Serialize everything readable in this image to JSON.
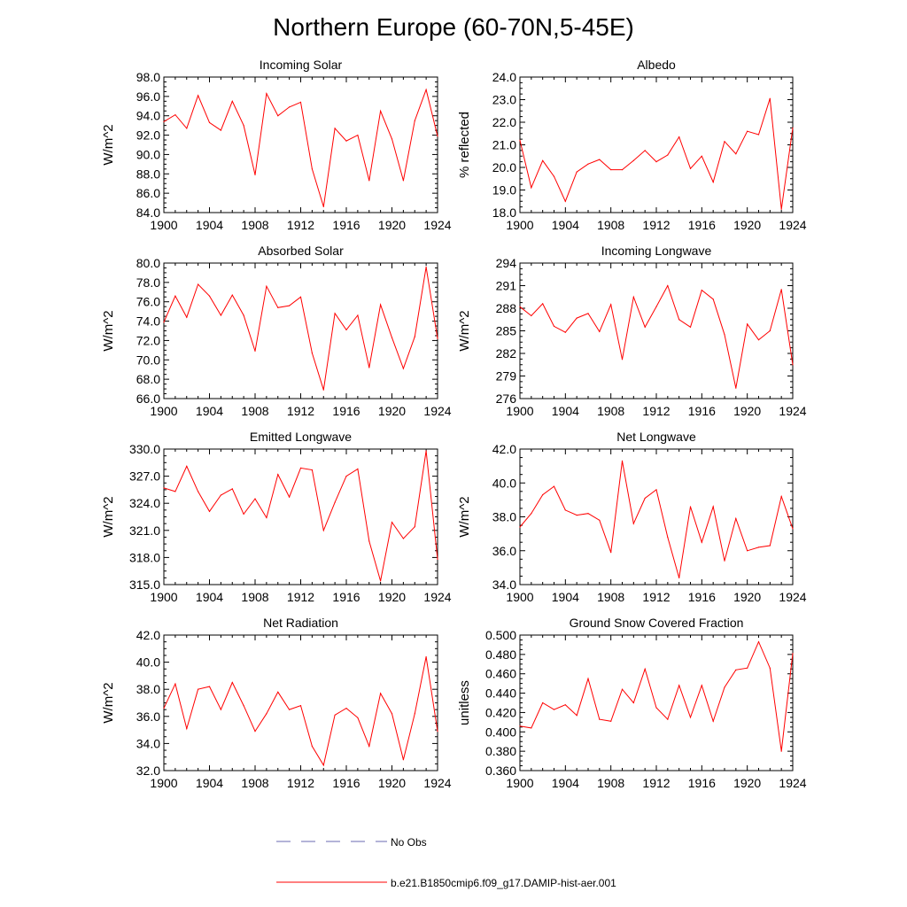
{
  "title": "Northern Europe (60-70N,5-45E)",
  "colors": {
    "series": "#ff0000",
    "no_obs": "#6a6ab0",
    "axis": "#000000"
  },
  "legend": {
    "no_obs_label": "No Obs",
    "series_label": "b.e21.B1850cmip6.f09_g17.DAMIP-hist-aer.001"
  },
  "chart_data": [
    {
      "type": "line",
      "title": "Incoming Solar",
      "ylabel": "W/m^2",
      "xlim": [
        1900,
        1924
      ],
      "ylim": [
        84,
        98
      ],
      "yticks": [
        84,
        86,
        88,
        90,
        92,
        94,
        96,
        98
      ],
      "ytick_labels": [
        "84.0",
        "86.0",
        "88.0",
        "90.0",
        "92.0",
        "94.0",
        "96.0",
        "98.0"
      ],
      "xticks": [
        1900,
        1904,
        1908,
        1912,
        1916,
        1920,
        1924
      ],
      "series": [
        {
          "x": [
            1900,
            1901,
            1902,
            1903,
            1904,
            1905,
            1906,
            1907,
            1908,
            1909,
            1910,
            1911,
            1912,
            1913,
            1914,
            1915,
            1916,
            1917,
            1918,
            1919,
            1920,
            1921,
            1922,
            1923,
            1924
          ],
          "values": [
            93.4,
            94.1,
            92.7,
            96.1,
            93.3,
            92.5,
            95.5,
            93.0,
            87.9,
            96.3,
            94.0,
            94.9,
            95.4,
            88.5,
            84.6,
            92.7,
            91.4,
            92.0,
            87.3,
            94.5,
            91.6,
            87.3,
            93.5,
            96.7,
            91.9
          ]
        }
      ]
    },
    {
      "type": "line",
      "title": "Albedo",
      "ylabel": "% reflected",
      "xlim": [
        1900,
        1924
      ],
      "ylim": [
        18,
        24
      ],
      "yticks": [
        18,
        19,
        20,
        21,
        22,
        23,
        24
      ],
      "ytick_labels": [
        "18.0",
        "19.0",
        "20.0",
        "21.0",
        "22.0",
        "23.0",
        "24.0"
      ],
      "xticks": [
        1900,
        1904,
        1908,
        1912,
        1916,
        1920,
        1924
      ],
      "series": [
        {
          "x": [
            1900,
            1901,
            1902,
            1903,
            1904,
            1905,
            1906,
            1907,
            1908,
            1909,
            1910,
            1911,
            1912,
            1913,
            1914,
            1915,
            1916,
            1917,
            1918,
            1919,
            1920,
            1921,
            1922,
            1923,
            1924
          ],
          "values": [
            21.2,
            19.1,
            20.3,
            19.6,
            18.5,
            19.8,
            20.15,
            20.35,
            19.9,
            19.9,
            20.3,
            20.75,
            20.25,
            20.55,
            21.35,
            19.95,
            20.5,
            19.35,
            21.15,
            20.6,
            21.6,
            21.45,
            23.05,
            18.15,
            21.75
          ]
        }
      ]
    },
    {
      "type": "line",
      "title": "Absorbed Solar",
      "ylabel": "W/m^2",
      "xlim": [
        1900,
        1924
      ],
      "ylim": [
        66,
        80
      ],
      "yticks": [
        66,
        68,
        70,
        72,
        74,
        76,
        78,
        80
      ],
      "ytick_labels": [
        "66.0",
        "68.0",
        "70.0",
        "72.0",
        "74.0",
        "76.0",
        "78.0",
        "80.0"
      ],
      "xticks": [
        1900,
        1904,
        1908,
        1912,
        1916,
        1920,
        1924
      ],
      "series": [
        {
          "x": [
            1900,
            1901,
            1902,
            1903,
            1904,
            1905,
            1906,
            1907,
            1908,
            1909,
            1910,
            1911,
            1912,
            1913,
            1914,
            1915,
            1916,
            1917,
            1918,
            1919,
            1920,
            1921,
            1922,
            1923,
            1924
          ],
          "values": [
            73.9,
            76.6,
            74.4,
            77.8,
            76.6,
            74.6,
            76.7,
            74.6,
            70.9,
            77.6,
            75.4,
            75.6,
            76.5,
            70.7,
            66.9,
            74.8,
            73.1,
            74.6,
            69.2,
            75.7,
            72.3,
            69.1,
            72.4,
            79.6,
            72.2
          ]
        }
      ]
    },
    {
      "type": "line",
      "title": "Incoming Longwave",
      "ylabel": "W/m^2",
      "xlim": [
        1900,
        1924
      ],
      "ylim": [
        276,
        294
      ],
      "yticks": [
        276,
        279,
        282,
        285,
        288,
        291,
        294
      ],
      "ytick_labels": [
        "276",
        "279",
        "282",
        "285",
        "288",
        "291",
        "294"
      ],
      "xticks": [
        1900,
        1904,
        1908,
        1912,
        1916,
        1920,
        1924
      ],
      "series": [
        {
          "x": [
            1900,
            1901,
            1902,
            1903,
            1904,
            1905,
            1906,
            1907,
            1908,
            1909,
            1910,
            1911,
            1912,
            1913,
            1914,
            1915,
            1916,
            1917,
            1918,
            1919,
            1920,
            1921,
            1922,
            1923,
            1924
          ],
          "values": [
            288.2,
            287.0,
            288.6,
            285.6,
            284.8,
            286.7,
            287.3,
            284.9,
            288.5,
            281.2,
            289.5,
            285.5,
            288.2,
            291.0,
            286.5,
            285.5,
            290.4,
            289.2,
            284.5,
            277.4,
            285.9,
            283.8,
            285.0,
            290.5,
            280.5
          ]
        }
      ]
    },
    {
      "type": "line",
      "title": "Emitted Longwave",
      "ylabel": "W/m^2",
      "xlim": [
        1900,
        1924
      ],
      "ylim": [
        315,
        330
      ],
      "yticks": [
        315,
        318,
        321,
        324,
        327,
        330
      ],
      "ytick_labels": [
        "315.0",
        "318.0",
        "321.0",
        "324.0",
        "327.0",
        "330.0"
      ],
      "xticks": [
        1900,
        1904,
        1908,
        1912,
        1916,
        1920,
        1924
      ],
      "series": [
        {
          "x": [
            1900,
            1901,
            1902,
            1903,
            1904,
            1905,
            1906,
            1907,
            1908,
            1909,
            1910,
            1911,
            1912,
            1913,
            1914,
            1915,
            1916,
            1917,
            1918,
            1919,
            1920,
            1921,
            1922,
            1923,
            1924
          ],
          "values": [
            325.7,
            325.3,
            328.1,
            325.3,
            323.1,
            324.9,
            325.6,
            322.8,
            324.5,
            322.4,
            327.2,
            324.7,
            327.9,
            327.7,
            321.0,
            324.1,
            327.0,
            327.8,
            319.8,
            315.4,
            321.9,
            320.1,
            321.4,
            329.8,
            317.8
          ]
        }
      ]
    },
    {
      "type": "line",
      "title": "Net Longwave",
      "ylabel": "W/m^2",
      "xlim": [
        1900,
        1924
      ],
      "ylim": [
        34,
        42
      ],
      "yticks": [
        34,
        36,
        38,
        40,
        42
      ],
      "ytick_labels": [
        "34.0",
        "36.0",
        "38.0",
        "40.0",
        "42.0"
      ],
      "xticks": [
        1900,
        1904,
        1908,
        1912,
        1916,
        1920,
        1924
      ],
      "series": [
        {
          "x": [
            1900,
            1901,
            1902,
            1903,
            1904,
            1905,
            1906,
            1907,
            1908,
            1909,
            1910,
            1911,
            1912,
            1913,
            1914,
            1915,
            1916,
            1917,
            1918,
            1919,
            1920,
            1921,
            1922,
            1923,
            1924
          ],
          "values": [
            37.4,
            38.2,
            39.3,
            39.8,
            38.4,
            38.1,
            38.2,
            37.8,
            35.9,
            41.3,
            37.6,
            39.1,
            39.6,
            36.8,
            34.4,
            38.6,
            36.5,
            38.6,
            35.4,
            37.9,
            36.0,
            36.2,
            36.3,
            39.2,
            37.3
          ]
        }
      ]
    },
    {
      "type": "line",
      "title": "Net Radiation",
      "ylabel": "W/m^2",
      "xlim": [
        1900,
        1924
      ],
      "ylim": [
        32,
        42
      ],
      "yticks": [
        32,
        34,
        36,
        38,
        40,
        42
      ],
      "ytick_labels": [
        "32.0",
        "34.0",
        "36.0",
        "38.0",
        "40.0",
        "42.0"
      ],
      "xticks": [
        1900,
        1904,
        1908,
        1912,
        1916,
        1920,
        1924
      ],
      "series": [
        {
          "x": [
            1900,
            1901,
            1902,
            1903,
            1904,
            1905,
            1906,
            1907,
            1908,
            1909,
            1910,
            1911,
            1912,
            1913,
            1914,
            1915,
            1916,
            1917,
            1918,
            1919,
            1920,
            1921,
            1922,
            1923,
            1924
          ],
          "values": [
            36.6,
            38.4,
            35.1,
            38.0,
            38.2,
            36.5,
            38.5,
            36.8,
            34.9,
            36.2,
            37.8,
            36.5,
            36.8,
            33.8,
            32.4,
            36.1,
            36.6,
            35.9,
            33.8,
            37.7,
            36.2,
            32.8,
            36.2,
            40.4,
            34.9
          ]
        }
      ]
    },
    {
      "type": "line",
      "title": "Ground Snow Covered Fraction",
      "ylabel": "unitless",
      "xlim": [
        1900,
        1924
      ],
      "ylim": [
        0.36,
        0.5
      ],
      "yticks": [
        0.36,
        0.38,
        0.4,
        0.42,
        0.44,
        0.46,
        0.48,
        0.5
      ],
      "ytick_labels": [
        "0.360",
        "0.380",
        "0.400",
        "0.420",
        "0.440",
        "0.460",
        "0.480",
        "0.500"
      ],
      "xticks": [
        1900,
        1904,
        1908,
        1912,
        1916,
        1920,
        1924
      ],
      "series": [
        {
          "x": [
            1900,
            1901,
            1902,
            1903,
            1904,
            1905,
            1906,
            1907,
            1908,
            1909,
            1910,
            1911,
            1912,
            1913,
            1914,
            1915,
            1916,
            1917,
            1918,
            1919,
            1920,
            1921,
            1922,
            1923,
            1924
          ],
          "values": [
            0.406,
            0.404,
            0.43,
            0.423,
            0.428,
            0.417,
            0.455,
            0.413,
            0.411,
            0.444,
            0.43,
            0.465,
            0.425,
            0.413,
            0.448,
            0.415,
            0.448,
            0.411,
            0.446,
            0.464,
            0.466,
            0.493,
            0.466,
            0.38,
            0.481
          ]
        }
      ]
    }
  ]
}
